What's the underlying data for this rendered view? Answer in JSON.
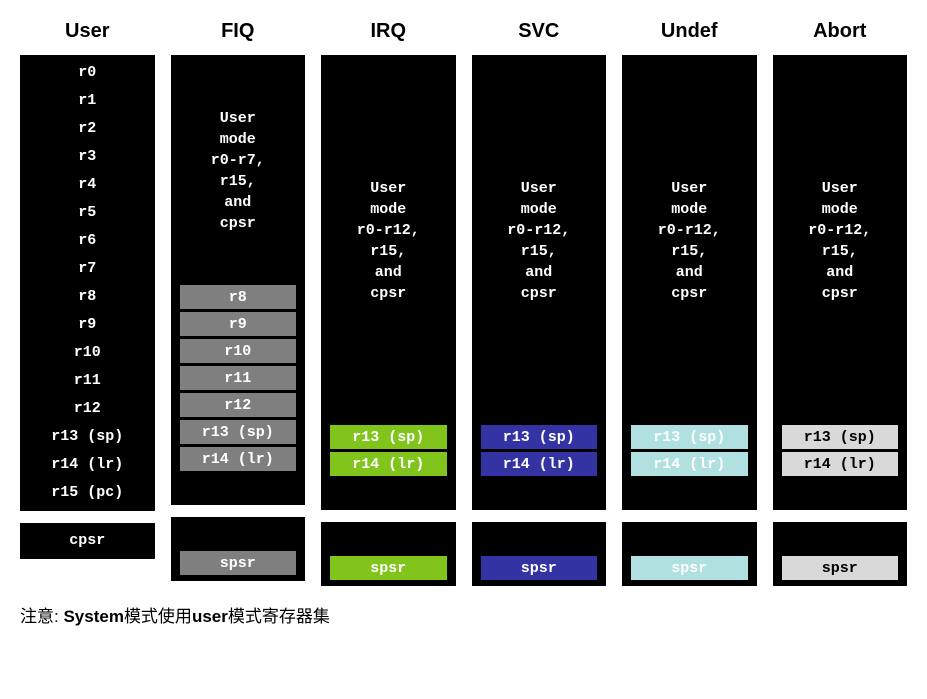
{
  "colors": {
    "bg_black": "#000000",
    "text_white": "#ffffff",
    "fiq_gray": "#7f7f7f",
    "fiq_text": "#ffffff",
    "irq_green": "#80c41c",
    "irq_text": "#ffffff",
    "svc_blue": "#3333a3",
    "svc_text": "#ffffff",
    "undef_teal": "#b0e0e0",
    "undef_text": "#ffffff",
    "abort_gray": "#d9d9d9",
    "abort_text": "#000000"
  },
  "headers": {
    "user": "User",
    "fiq": "FIQ",
    "irq": "IRQ",
    "svc": "SVC",
    "undef": "Undef",
    "abort": "Abort"
  },
  "user_regs": [
    "r0",
    "r1",
    "r2",
    "r3",
    "r4",
    "r5",
    "r6",
    "r7",
    "r8",
    "r9",
    "r10",
    "r11",
    "r12",
    "r13 (sp)",
    "r14 (lr)",
    "r15 (pc)"
  ],
  "cpsr": "cpsr",
  "spsr": "spsr",
  "fiq": {
    "shared_text": "User\nmode\nr0-r7,\nr15,\nand\ncpsr",
    "shared_height_rows": 8,
    "banked": [
      "r8",
      "r9",
      "r10",
      "r11",
      "r12",
      "r13 (sp)",
      "r14 (lr)"
    ]
  },
  "other_shared_text": "User\nmode\nr0-r12,\nr15,\nand\ncpsr",
  "other_banked": [
    "r13 (sp)",
    "r14 (lr)"
  ],
  "note_prefix": "注意: ",
  "note_bold1": "System",
  "note_mid1": "模式使用",
  "note_bold2": "user",
  "note_mid2": "模式寄存器集"
}
